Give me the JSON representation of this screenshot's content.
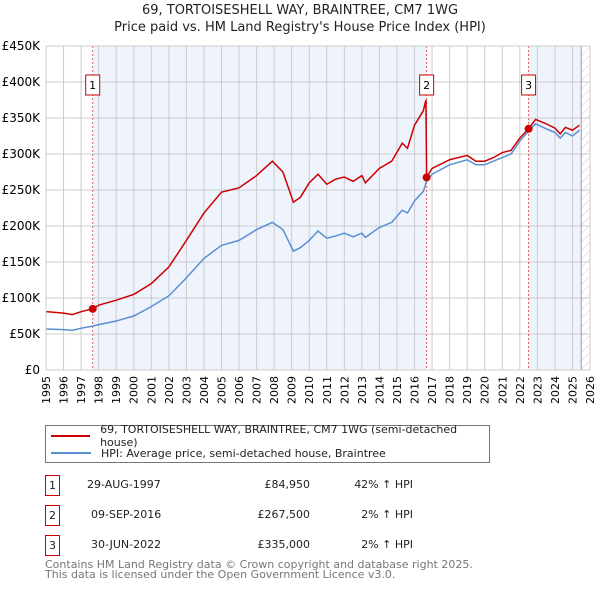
{
  "chart_data": {
    "type": "line",
    "title": "69, TORTOISESHELL WAY, BRAINTREE, CM7 1WG",
    "subtitle": "Price paid vs. HM Land Registry's House Price Index (HPI)",
    "xlim": [
      1995,
      2026
    ],
    "ylim": [
      0,
      450000
    ],
    "x_ticks": [
      "1995",
      "1996",
      "1997",
      "1998",
      "1999",
      "2000",
      "2001",
      "2002",
      "2003",
      "2004",
      "2005",
      "2006",
      "2007",
      "2008",
      "2009",
      "2010",
      "2011",
      "2012",
      "2013",
      "2014",
      "2015",
      "2016",
      "2017",
      "2018",
      "2019",
      "2020",
      "2021",
      "2022",
      "2023",
      "2024",
      "2025",
      "2026"
    ],
    "y_ticks": [
      {
        "v": 0,
        "label": "£0"
      },
      {
        "v": 50000,
        "label": "£50K"
      },
      {
        "v": 100000,
        "label": "£100K"
      },
      {
        "v": 150000,
        "label": "£150K"
      },
      {
        "v": 200000,
        "label": "£200K"
      },
      {
        "v": 250000,
        "label": "£250K"
      },
      {
        "v": 300000,
        "label": "£300K"
      },
      {
        "v": 350000,
        "label": "£350K"
      },
      {
        "v": 400000,
        "label": "£400K"
      },
      {
        "v": 450000,
        "label": "£450K"
      }
    ],
    "grid": true,
    "series": [
      {
        "name": "69, TORTOISESHELL WAY, BRAINTREE, CM7 1WG (semi-detached house)",
        "color": "#cc0000",
        "x": [
          1995,
          1996,
          1996.5,
          1997,
          1997.66,
          1998,
          1999,
          2000,
          2001,
          2002,
          2003,
          2004,
          2005,
          2006,
          2007,
          2007.9,
          2008.5,
          2009.1,
          2009.5,
          2010,
          2010.5,
          2011,
          2011.5,
          2012,
          2012.5,
          2013,
          2013.2,
          2014,
          2014.7,
          2015.3,
          2015.6,
          2016,
          2016.5,
          2016.65,
          2016.69,
          2017,
          2018,
          2019,
          2019.5,
          2020,
          2020.5,
          2021,
          2021.5,
          2022,
          2022.5,
          2022.9,
          2023.5,
          2024,
          2024.3,
          2024.6,
          2025,
          2025.4
        ],
        "y": [
          81000,
          79000,
          77000,
          81000,
          84950,
          90000,
          97000,
          105000,
          120000,
          143000,
          180000,
          218000,
          247000,
          253000,
          270000,
          290000,
          275000,
          233000,
          240000,
          260000,
          272000,
          258000,
          265000,
          268000,
          262000,
          270000,
          260000,
          280000,
          290000,
          315000,
          308000,
          340000,
          360000,
          375000,
          267500,
          280000,
          292000,
          298000,
          290000,
          290000,
          295000,
          302000,
          305000,
          322000,
          335000,
          348000,
          342000,
          336000,
          328000,
          337000,
          333000,
          340000
        ]
      },
      {
        "name": "HPI: Average price, semi-detached house, Braintree",
        "color": "#5b8fd4",
        "x": [
          1995,
          1996,
          1996.5,
          1997,
          1997.66,
          1998,
          1999,
          2000,
          2001,
          2002,
          2003,
          2004,
          2005,
          2006,
          2007,
          2007.9,
          2008.5,
          2009.1,
          2009.5,
          2010,
          2010.5,
          2011,
          2011.5,
          2012,
          2012.5,
          2013,
          2013.2,
          2014,
          2014.7,
          2015.3,
          2015.6,
          2016,
          2016.5,
          2016.69,
          2017,
          2018,
          2019,
          2019.5,
          2020,
          2020.5,
          2021,
          2021.5,
          2022,
          2022.5,
          2022.9,
          2023.5,
          2024,
          2024.3,
          2024.6,
          2025,
          2025.4
        ],
        "y": [
          57000,
          56000,
          55000,
          58000,
          61000,
          63000,
          68000,
          75000,
          88000,
          103000,
          128000,
          155000,
          173000,
          180000,
          195000,
          205000,
          195000,
          165000,
          170000,
          180000,
          193000,
          183000,
          186000,
          190000,
          185000,
          190000,
          184000,
          198000,
          205000,
          222000,
          218000,
          235000,
          248000,
          262000,
          272000,
          285000,
          292000,
          285000,
          285000,
          290000,
          295000,
          300000,
          318000,
          332000,
          342000,
          335000,
          330000,
          322000,
          330000,
          325000,
          333000
        ]
      }
    ],
    "sales": [
      {
        "label": "1",
        "x": 1997.66,
        "price": 84950
      },
      {
        "label": "2",
        "x": 2016.69,
        "price": 267500
      },
      {
        "label": "3",
        "x": 2022.5,
        "price": 335000
      }
    ],
    "shaded_ranges": [
      [
        1997.66,
        2016.69
      ],
      [
        2022.5,
        2025.5
      ]
    ],
    "legend": "below"
  },
  "table": [
    {
      "num": "1",
      "date": "29-AUG-1997",
      "price": "£84,950",
      "hpi": "42% ↑ HPI"
    },
    {
      "num": "2",
      "date": "09-SEP-2016",
      "price": "£267,500",
      "hpi": "2% ↑ HPI"
    },
    {
      "num": "3",
      "date": "30-JUN-2022",
      "price": "£335,000",
      "hpi": "2% ↑ HPI"
    }
  ],
  "footer": [
    "Contains HM Land Registry data © Crown copyright and database right 2025.",
    "This data is licensed under the Open Government Licence v3.0."
  ]
}
